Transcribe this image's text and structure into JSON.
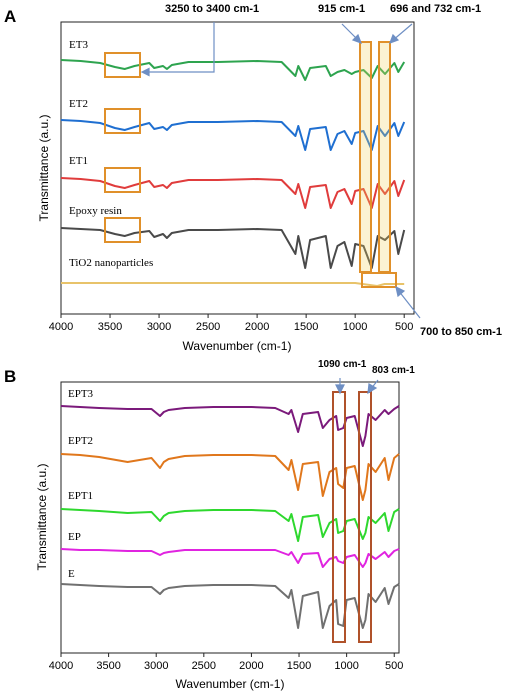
{
  "figure": {
    "panels": [
      {
        "panel_label": "A",
        "xlabel": "Wavenumber (cm-1)",
        "ylabel": "Transmittance (a.u.)",
        "xlim": [
          4000,
          400
        ],
        "x_ticks": [
          4000,
          3500,
          3000,
          2500,
          2000,
          1500,
          1000,
          500
        ],
        "callouts": [
          {
            "text": "3250 to 3400 cm-1"
          },
          {
            "text": "915 cm-1"
          },
          {
            "text": "696 and 732 cm-1"
          },
          {
            "text": "700 to 850 cm-1"
          }
        ]
      },
      {
        "panel_label": "B",
        "xlabel": "Wavenumber (cm-1)",
        "ylabel": "Transmittance (a.u.)",
        "xlim": [
          4000,
          450
        ],
        "x_ticks": [
          4000,
          3500,
          3000,
          2500,
          2000,
          1500,
          1000,
          500
        ],
        "callouts": [
          {
            "text": "1090 cm-1"
          },
          {
            "text": "803 cm-1"
          }
        ]
      }
    ]
  },
  "chart_data": [
    {
      "type": "line",
      "title": "",
      "xlabel": "Wavenumber (cm-1)",
      "ylabel": "Transmittance (a.u.)",
      "xlim": [
        4000,
        400
      ],
      "x_reversed": true,
      "grid": false,
      "legend": "none",
      "highlight_boxes": [
        [
          3250,
          3400
        ],
        [
          880,
          950
        ],
        [
          690,
          740
        ],
        [
          700,
          850
        ]
      ],
      "series": [
        {
          "name": "ET3",
          "color": "#2ea44f",
          "x": [
            4000,
            3800,
            3600,
            3450,
            3350,
            3250,
            3100,
            3050,
            2960,
            2920,
            2870,
            2700,
            2400,
            2000,
            1750,
            1610,
            1580,
            1510,
            1460,
            1300,
            1250,
            1180,
            1110,
            1035,
            1000,
            915,
            830,
            770,
            696,
            600,
            560,
            500
          ],
          "y": [
            0,
            -1,
            -3,
            -7,
            -9,
            -6,
            -3,
            -8,
            -6,
            -9,
            -5,
            -2,
            -2,
            -1,
            -2,
            -16,
            -6,
            -20,
            -8,
            -6,
            -16,
            -12,
            -10,
            -14,
            -12,
            -10,
            -18,
            -6,
            -14,
            -3,
            -12,
            -2
          ]
        },
        {
          "name": "ET2",
          "color": "#1f6fd1",
          "x": [
            4000,
            3800,
            3600,
            3450,
            3350,
            3250,
            3100,
            3050,
            2960,
            2920,
            2870,
            2700,
            2400,
            2000,
            1750,
            1610,
            1580,
            1510,
            1460,
            1300,
            1250,
            1180,
            1110,
            1035,
            1000,
            915,
            830,
            770,
            696,
            600,
            560,
            500
          ],
          "y": [
            0,
            -1,
            -3,
            -8,
            -10,
            -7,
            -3,
            -9,
            -7,
            -10,
            -5,
            -2,
            -2,
            -1,
            -2,
            -16,
            -6,
            -30,
            -9,
            -7,
            -30,
            -14,
            -11,
            -24,
            -13,
            -11,
            -30,
            -6,
            -16,
            -3,
            -16,
            -2
          ]
        },
        {
          "name": "ET1",
          "color": "#e03c3c",
          "x": [
            4000,
            3800,
            3600,
            3450,
            3350,
            3250,
            3100,
            3050,
            2960,
            2920,
            2870,
            2700,
            2400,
            2000,
            1750,
            1610,
            1580,
            1510,
            1460,
            1300,
            1250,
            1180,
            1110,
            1035,
            1000,
            915,
            830,
            770,
            696,
            600,
            560,
            500
          ],
          "y": [
            0,
            -1,
            -3,
            -8,
            -10,
            -7,
            -3,
            -9,
            -7,
            -10,
            -5,
            -2,
            -2,
            -1,
            -2,
            -16,
            -6,
            -30,
            -9,
            -7,
            -30,
            -14,
            -11,
            -26,
            -13,
            -11,
            -30,
            -6,
            -16,
            -3,
            -18,
            -2
          ]
        },
        {
          "name": "Epoxy resin",
          "color": "#4a4a4a",
          "x": [
            4000,
            3800,
            3600,
            3450,
            3350,
            3250,
            3100,
            3050,
            2960,
            2920,
            2870,
            2700,
            2400,
            2000,
            1750,
            1610,
            1580,
            1510,
            1460,
            1300,
            1250,
            1180,
            1110,
            1035,
            1000,
            915,
            830,
            770,
            696,
            600,
            560,
            500
          ],
          "y": [
            0,
            -1,
            -2,
            -6,
            -8,
            -5,
            -3,
            -9,
            -6,
            -10,
            -5,
            -2,
            -2,
            -1,
            -2,
            -26,
            -8,
            -40,
            -12,
            -8,
            -40,
            -18,
            -14,
            -38,
            -16,
            -18,
            -40,
            -8,
            -12,
            -3,
            -26,
            -2
          ]
        },
        {
          "name": "TiO2 nanoparticles",
          "color": "#e8c36a",
          "x": [
            4000,
            3000,
            2000,
            1500,
            1000,
            850,
            775,
            700,
            500
          ],
          "y": [
            0,
            0,
            0,
            0,
            0,
            -2,
            -3,
            -1,
            -1
          ]
        }
      ]
    },
    {
      "type": "line",
      "title": "",
      "xlabel": "Wavenumber (cm-1)",
      "ylabel": "Transmittance (a.u.)",
      "xlim": [
        4000,
        450
      ],
      "x_reversed": true,
      "grid": false,
      "legend": "none",
      "highlight_boxes": [
        [
          1040,
          1150
        ],
        [
          770,
          850
        ]
      ],
      "series": [
        {
          "name": "EPT3",
          "color": "#7b1a7b",
          "x": [
            4000,
            3800,
            3600,
            3300,
            3050,
            2960,
            2920,
            2870,
            2700,
            2400,
            2000,
            1750,
            1610,
            1580,
            1510,
            1460,
            1300,
            1250,
            1180,
            1110,
            1090,
            1035,
            1000,
            915,
            830,
            803,
            770,
            696,
            600,
            560,
            500,
            450
          ],
          "y": [
            0,
            -1,
            -2,
            -3,
            -3,
            -10,
            -6,
            -4,
            -2,
            -1,
            -1,
            -2,
            -8,
            -4,
            -26,
            -8,
            -6,
            -22,
            -14,
            -10,
            -24,
            -22,
            -12,
            -10,
            -40,
            -30,
            -8,
            -14,
            -4,
            -8,
            -3,
            0
          ]
        },
        {
          "name": "EPT2",
          "color": "#e0771c",
          "x": [
            4000,
            3800,
            3600,
            3300,
            3050,
            2960,
            2920,
            2870,
            2700,
            2400,
            2000,
            1750,
            1610,
            1580,
            1510,
            1460,
            1300,
            1250,
            1180,
            1110,
            1090,
            1035,
            1000,
            915,
            830,
            803,
            770,
            696,
            600,
            560,
            500,
            450
          ],
          "y": [
            0,
            -1,
            -3,
            -8,
            -4,
            -14,
            -8,
            -5,
            -2,
            -1,
            -1,
            -2,
            -16,
            -6,
            -36,
            -10,
            -8,
            -42,
            -18,
            -14,
            -30,
            -34,
            -14,
            -12,
            -46,
            -36,
            -10,
            -18,
            -4,
            -26,
            -4,
            0
          ]
        },
        {
          "name": "EPT1",
          "color": "#2ed82e",
          "x": [
            4000,
            3800,
            3600,
            3300,
            3050,
            2960,
            2920,
            2870,
            2700,
            2400,
            2000,
            1750,
            1610,
            1580,
            1510,
            1460,
            1300,
            1250,
            1180,
            1110,
            1090,
            1035,
            1000,
            915,
            830,
            803,
            770,
            696,
            600,
            560,
            500,
            450
          ],
          "y": [
            0,
            -1,
            -2,
            -4,
            -3,
            -12,
            -7,
            -4,
            -2,
            -1,
            -1,
            -2,
            -12,
            -5,
            -32,
            -8,
            -6,
            -28,
            -14,
            -10,
            -24,
            -22,
            -12,
            -10,
            -30,
            -24,
            -8,
            -14,
            -4,
            -22,
            -3,
            0
          ]
        },
        {
          "name": "EP",
          "color": "#e024e0",
          "x": [
            4000,
            3800,
            3600,
            3300,
            3050,
            2960,
            2920,
            2870,
            2700,
            2400,
            2000,
            1750,
            1610,
            1580,
            1510,
            1460,
            1300,
            1250,
            1180,
            1110,
            1090,
            1035,
            1000,
            915,
            830,
            803,
            770,
            696,
            600,
            560,
            500,
            450
          ],
          "y": [
            0,
            -1,
            -1,
            -2,
            -2,
            -6,
            -4,
            -3,
            -1,
            -1,
            -1,
            -1,
            -6,
            -3,
            -14,
            -5,
            -4,
            -18,
            -10,
            -8,
            -12,
            -14,
            -8,
            -6,
            -18,
            -14,
            -5,
            -10,
            -3,
            -8,
            -2,
            0
          ]
        },
        {
          "name": "E",
          "color": "#707070",
          "x": [
            4000,
            3800,
            3600,
            3300,
            3050,
            2960,
            2920,
            2870,
            2700,
            2400,
            2000,
            1750,
            1610,
            1580,
            1510,
            1460,
            1300,
            1250,
            1180,
            1110,
            1090,
            1035,
            1000,
            915,
            830,
            803,
            770,
            696,
            600,
            560,
            500,
            450
          ],
          "y": [
            0,
            -1,
            -2,
            -3,
            -3,
            -10,
            -6,
            -4,
            -2,
            -1,
            -1,
            -2,
            -14,
            -6,
            -44,
            -12,
            -8,
            -44,
            -22,
            -16,
            -40,
            -42,
            -16,
            -14,
            -44,
            -36,
            -10,
            -18,
            -4,
            -20,
            -3,
            0
          ]
        }
      ]
    }
  ]
}
